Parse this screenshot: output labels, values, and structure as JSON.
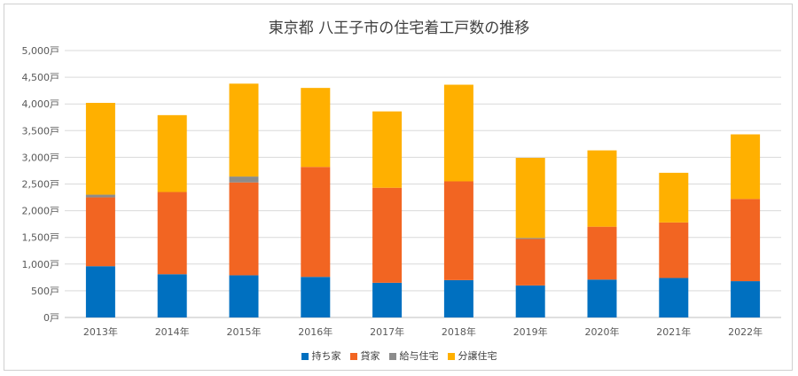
{
  "chart_data": {
    "type": "bar",
    "stacked": true,
    "title": "東京都 八王子市の住宅着工戸数の推移",
    "categories": [
      "2013年",
      "2014年",
      "2015年",
      "2016年",
      "2017年",
      "2018年",
      "2019年",
      "2020年",
      "2021年",
      "2022年"
    ],
    "ylim": [
      0,
      5000
    ],
    "yticks": [
      "0戸",
      "500戸",
      "1,000戸",
      "1,500戸",
      "2,000戸",
      "2,500戸",
      "3,000戸",
      "3,500戸",
      "4,000戸",
      "4,500戸",
      "5,000戸"
    ],
    "grid": true,
    "legend_position": "bottom",
    "series": [
      {
        "name": "持ち家",
        "color": "#0070C0",
        "values": [
          960,
          810,
          790,
          760,
          650,
          700,
          600,
          710,
          740,
          680
        ]
      },
      {
        "name": "貸家",
        "color": "#F26522",
        "values": [
          1290,
          1540,
          1740,
          2060,
          1780,
          1850,
          870,
          990,
          1040,
          1540
        ]
      },
      {
        "name": "給与住宅",
        "color": "#8C8C8C",
        "values": [
          50,
          0,
          110,
          0,
          0,
          0,
          20,
          0,
          0,
          0
        ]
      },
      {
        "name": "分譲住宅",
        "color": "#FFB000",
        "values": [
          1720,
          1440,
          1740,
          1480,
          1430,
          1810,
          1500,
          1430,
          930,
          1210
        ]
      }
    ]
  }
}
